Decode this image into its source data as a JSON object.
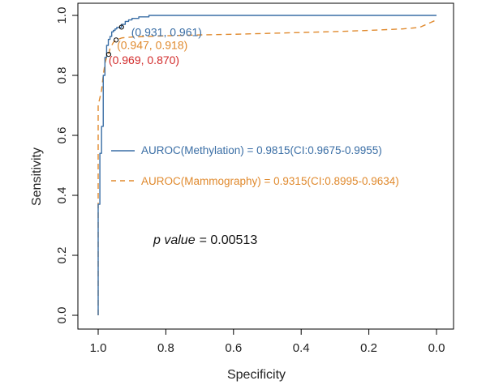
{
  "chart_data": {
    "type": "line",
    "xlabel": "Specificity",
    "ylabel": "Sensitivity",
    "xlim": [
      1.0,
      0.0
    ],
    "ylim": [
      0.0,
      1.0
    ],
    "x_reversed": true,
    "x_ticks": [
      "1.0",
      "0.8",
      "0.6",
      "0.4",
      "0.2",
      "0.0"
    ],
    "y_ticks": [
      "0.0",
      "0.2",
      "0.4",
      "0.6",
      "0.8",
      "1.0"
    ],
    "grid": false,
    "series": [
      {
        "name": "AUROC(Methylation) = 0.9815(CI:0.9675-0.9955)",
        "color": "#3a6ea5",
        "line_style": "solid",
        "specificity": [
          1.0,
          1.0,
          0.995,
          0.995,
          0.99,
          0.99,
          0.985,
          0.985,
          0.98,
          0.98,
          0.975,
          0.975,
          0.97,
          0.97,
          0.965,
          0.965,
          0.96,
          0.96,
          0.955,
          0.955,
          0.95,
          0.95,
          0.945,
          0.945,
          0.94,
          0.94,
          0.931,
          0.931,
          0.92,
          0.92,
          0.91,
          0.91,
          0.9,
          0.9,
          0.88,
          0.88,
          0.85,
          0.85,
          0.0
        ],
        "sensitivity": [
          0.0,
          0.37,
          0.37,
          0.54,
          0.54,
          0.63,
          0.63,
          0.8,
          0.8,
          0.86,
          0.86,
          0.9,
          0.9,
          0.92,
          0.92,
          0.93,
          0.93,
          0.945,
          0.945,
          0.95,
          0.95,
          0.955,
          0.955,
          0.96,
          0.96,
          0.96,
          0.96,
          0.97,
          0.97,
          0.98,
          0.98,
          0.985,
          0.985,
          0.99,
          0.99,
          0.995,
          0.995,
          1.0,
          1.0
        ]
      },
      {
        "name": "AUROC(Mammography) = 0.9315(CI:0.8995-0.9634)",
        "color": "#e08a2e",
        "line_style": "dashed",
        "specificity": [
          1.0,
          1.0,
          0.99,
          0.985,
          0.98,
          0.975,
          0.969,
          0.965,
          0.955,
          0.947,
          0.93,
          0.9,
          0.85,
          0.8,
          0.7,
          0.6,
          0.5,
          0.4,
          0.3,
          0.2,
          0.1,
          0.05,
          0.02,
          0.0
        ],
        "sensitivity": [
          0.0,
          0.7,
          0.75,
          0.8,
          0.84,
          0.86,
          0.87,
          0.89,
          0.91,
          0.918,
          0.925,
          0.928,
          0.93,
          0.932,
          0.935,
          0.937,
          0.94,
          0.943,
          0.946,
          0.95,
          0.955,
          0.96,
          0.975,
          0.985
        ]
      }
    ],
    "annotations": [
      {
        "text": "(0.931, 0.961)",
        "specificity": 0.931,
        "sensitivity": 0.961,
        "color": "#3a6ea5"
      },
      {
        "text": "(0.947, 0.918)",
        "specificity": 0.947,
        "sensitivity": 0.918,
        "color": "#e08a2e"
      },
      {
        "text": "(0.969, 0.870)",
        "specificity": 0.969,
        "sensitivity": 0.87,
        "color": "#d22b2b"
      }
    ],
    "p_value": {
      "label": "p value",
      "equals": "= 0.00513"
    }
  }
}
